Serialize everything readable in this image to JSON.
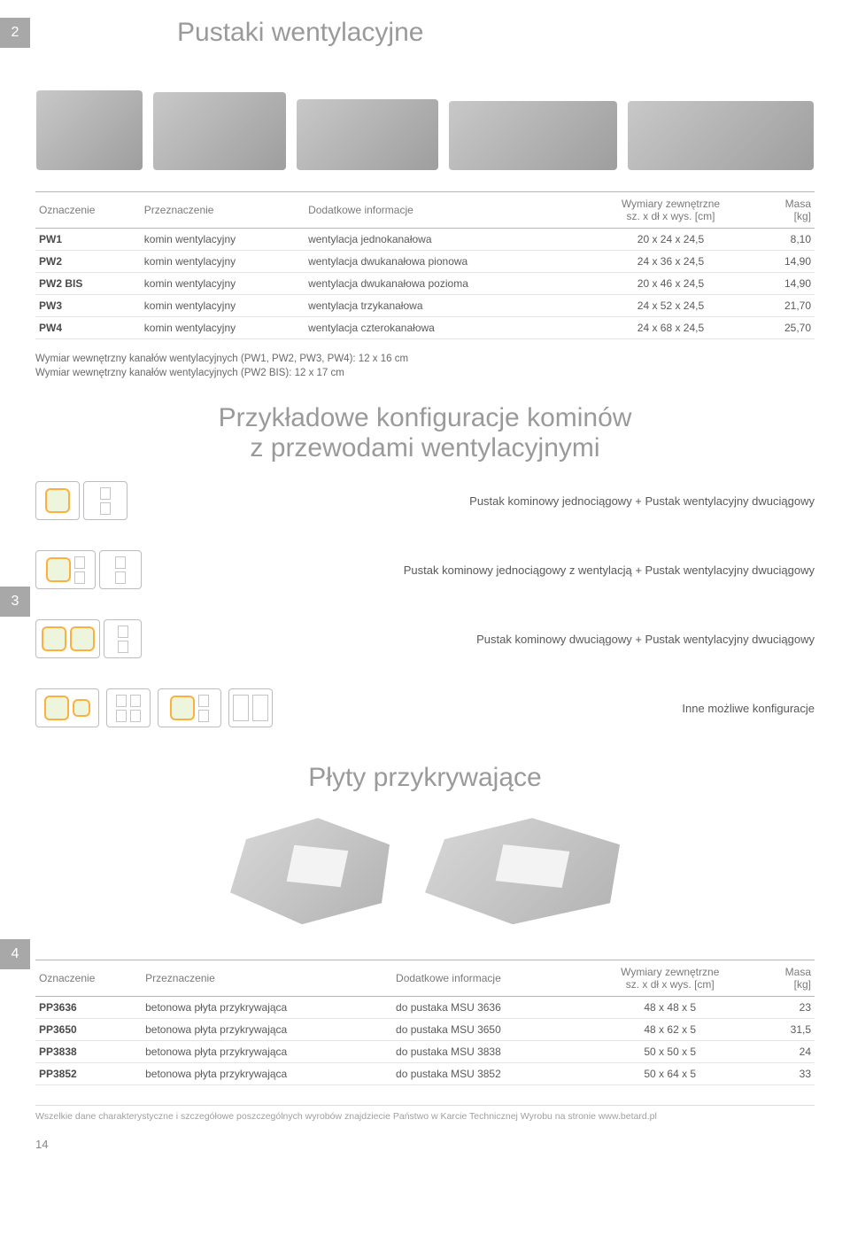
{
  "colors": {
    "badge_bg": "#a8a8a8",
    "badge_fg": "#ffffff",
    "title": "#9a9a9a",
    "text": "#5a5a5a",
    "border": "#b5b5b5",
    "row_border": "#e4e4e4",
    "hole_border": "#fbb040",
    "hole_fill": "#eef5dd"
  },
  "badges": {
    "s2": "2",
    "s3": "3",
    "s4": "4"
  },
  "sections": {
    "s2_title": "Pustaki wentylacyjne",
    "s3_title": "Przykładowe konfiguracje kominów z przewodami wentylacyjnymi",
    "s3_title_l1": "Przykładowe konfiguracje kominów",
    "s3_title_l2": "z przewodami wentylacyjnymi",
    "s4_title": "Płyty przykrywające"
  },
  "table1": {
    "headers": {
      "oznaczenie": "Oznaczenie",
      "przeznaczenie": "Przeznaczenie",
      "dodatkowe": "Dodatkowe informacje",
      "wymiary": "Wymiary zewnętrzne",
      "wymiary_sub": "sz. x dł x wys. [cm]",
      "masa": "Masa",
      "masa_sub": "[kg]"
    },
    "rows": [
      {
        "code": "PW1",
        "use": "komin wentylacyjny",
        "info": "wentylacja jednokanałowa",
        "dim": "20 x 24 x 24,5",
        "mass": "8,10"
      },
      {
        "code": "PW2",
        "use": "komin wentylacyjny",
        "info": "wentylacja dwukanałowa pionowa",
        "dim": "24 x 36 x 24,5",
        "mass": "14,90"
      },
      {
        "code": "PW2 BIS",
        "use": "komin wentylacyjny",
        "info": "wentylacja dwukanałowa pozioma",
        "dim": "20 x 46 x 24,5",
        "mass": "14,90"
      },
      {
        "code": "PW3",
        "use": "komin wentylacyjny",
        "info": "wentylacja trzykanałowa",
        "dim": "24 x 52 x 24,5",
        "mass": "21,70"
      },
      {
        "code": "PW4",
        "use": "komin wentylacyjny",
        "info": "wentylacja czterokanałowa",
        "dim": "24 x 68 x 24,5",
        "mass": "25,70"
      }
    ]
  },
  "notes": {
    "n1": "Wymiar wewnętrzny kanałów wentylacyjnych (PW1, PW2, PW3, PW4): 12 x 16 cm",
    "n2": "Wymiar wewnętrzny kanałów wentylacyjnych (PW2 BIS): 12 x 17 cm"
  },
  "configs": [
    {
      "caption": "Pustak kominowy jednociągowy + Pustak wentylacyjny dwuciągowy"
    },
    {
      "caption": "Pustak kominowy jednociągowy z wentylacją + Pustak wentylacyjny dwuciągowy"
    },
    {
      "caption": "Pustak kominowy dwuciągowy + Pustak wentylacyjny dwuciągowy"
    },
    {
      "caption": "Inne możliwe konfiguracje"
    }
  ],
  "table2": {
    "headers": {
      "oznaczenie": "Oznaczenie",
      "przeznaczenie": "Przeznaczenie",
      "dodatkowe": "Dodatkowe informacje",
      "wymiary": "Wymiary zewnętrzne",
      "wymiary_sub": "sz. x dł x wys. [cm]",
      "masa": "Masa",
      "masa_sub": "[kg]"
    },
    "rows": [
      {
        "code": "PP3636",
        "use": "betonowa płyta przykrywająca",
        "info": "do pustaka MSU 3636",
        "dim": "48 x 48 x 5",
        "mass": "23"
      },
      {
        "code": "PP3650",
        "use": "betonowa płyta przykrywająca",
        "info": "do pustaka MSU 3650",
        "dim": "48 x 62 x 5",
        "mass": "31,5"
      },
      {
        "code": "PP3838",
        "use": "betonowa płyta przykrywająca",
        "info": "do pustaka MSU 3838",
        "dim": "50 x 50 x 5",
        "mass": "24"
      },
      {
        "code": "PP3852",
        "use": "betonowa płyta przykrywająca",
        "info": "do pustaka MSU 3852",
        "dim": "50 x 64 x 5",
        "mass": "33"
      }
    ]
  },
  "footer": "Wszelkie dane charakterystyczne i szczegółowe poszczególnych wyrobów znajdziecie Państwo w Karcie Technicznej Wyrobu na stronie www.betard.pl",
  "page_number": "14"
}
